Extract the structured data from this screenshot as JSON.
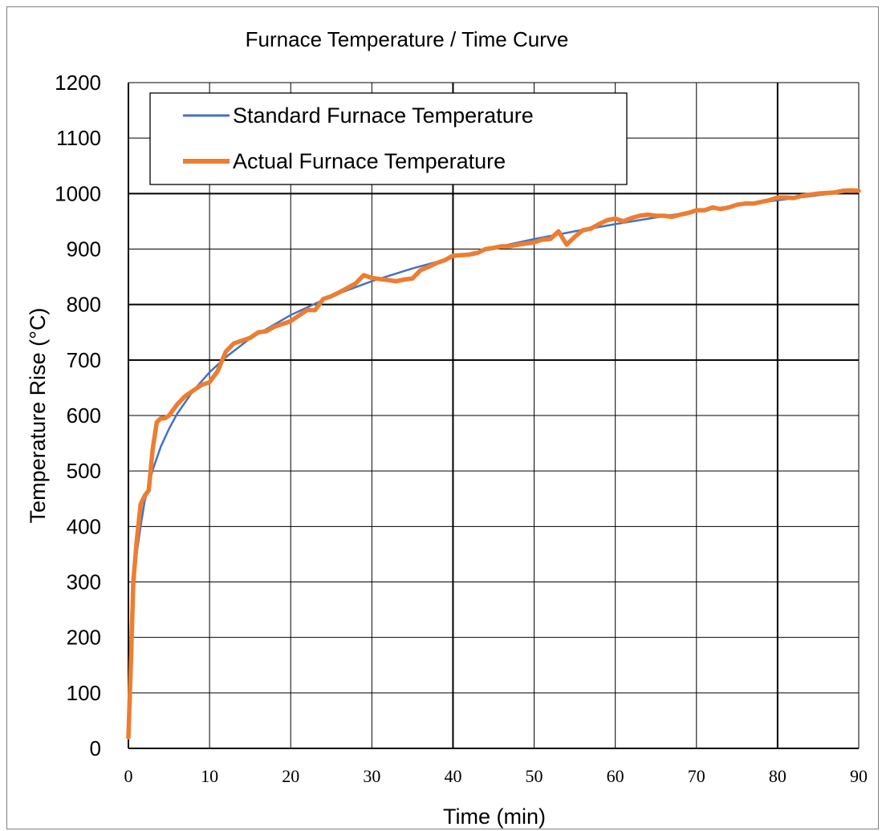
{
  "chart_data": {
    "type": "line",
    "title": "Furnace Temperature / Time Curve",
    "xlabel": "Time (min)",
    "ylabel": "Temperature Rise (°C)",
    "xlim": [
      0,
      90
    ],
    "ylim": [
      0,
      1200
    ],
    "xticks": [
      0,
      10,
      20,
      30,
      40,
      50,
      60,
      70,
      80,
      90
    ],
    "yticks": [
      0,
      100,
      200,
      300,
      400,
      500,
      600,
      700,
      800,
      900,
      1000,
      1100,
      1200
    ],
    "grid": true,
    "legend_position": "top-left",
    "series": [
      {
        "name": "Standard Furnace Temperature",
        "color": "#4472C4",
        "x": [
          0,
          0.5,
          1,
          1.5,
          2,
          3,
          4,
          5,
          6,
          8,
          10,
          12,
          15,
          20,
          25,
          30,
          35,
          40,
          45,
          50,
          55,
          60,
          65,
          70,
          75,
          80,
          85,
          90
        ],
        "y": [
          20,
          260,
          349,
          400,
          445,
          502,
          544,
          576,
          603,
          645,
          678,
          705,
          739,
          781,
          815,
          842,
          865,
          885,
          902,
          918,
          932,
          945,
          957,
          968,
          979,
          988,
          997,
          1006
        ]
      },
      {
        "name": "Actual Furnace Temperature",
        "color": "#ED7D31",
        "x": [
          0,
          0.3,
          0.6,
          1,
          1.5,
          2,
          2.5,
          3,
          3.5,
          4,
          4.5,
          5,
          6,
          7,
          8,
          9,
          10,
          11,
          12,
          13,
          14,
          15,
          16,
          17,
          18,
          19,
          20,
          21,
          22,
          23,
          24,
          25,
          26,
          27,
          28,
          29,
          30,
          31,
          32,
          33,
          34,
          35,
          36,
          37,
          38,
          39,
          40,
          41,
          42,
          43,
          44,
          45,
          46,
          47,
          48,
          49,
          50,
          51,
          52,
          53,
          54,
          55,
          56,
          57,
          58,
          59,
          60,
          61,
          62,
          63,
          64,
          65,
          66,
          67,
          68,
          69,
          70,
          71,
          72,
          73,
          74,
          75,
          76,
          77,
          78,
          79,
          80,
          81,
          82,
          83,
          84,
          85,
          86,
          87,
          88,
          89,
          90
        ],
        "y": [
          20,
          150,
          300,
          370,
          440,
          455,
          465,
          540,
          588,
          595,
          595,
          600,
          620,
          635,
          645,
          655,
          660,
          680,
          715,
          730,
          735,
          740,
          750,
          752,
          760,
          765,
          770,
          780,
          790,
          790,
          810,
          815,
          822,
          830,
          838,
          853,
          848,
          846,
          844,
          842,
          845,
          847,
          862,
          868,
          875,
          880,
          888,
          889,
          890,
          893,
          900,
          902,
          905,
          905,
          908,
          910,
          912,
          917,
          918,
          932,
          908,
          922,
          934,
          937,
          945,
          952,
          955,
          950,
          956,
          960,
          962,
          960,
          960,
          958,
          962,
          965,
          970,
          970,
          975,
          972,
          975,
          980,
          982,
          982,
          985,
          988,
          993,
          993,
          992,
          996,
          998,
          1000,
          1001,
          1002,
          1005,
          1006,
          1005
        ]
      }
    ]
  }
}
